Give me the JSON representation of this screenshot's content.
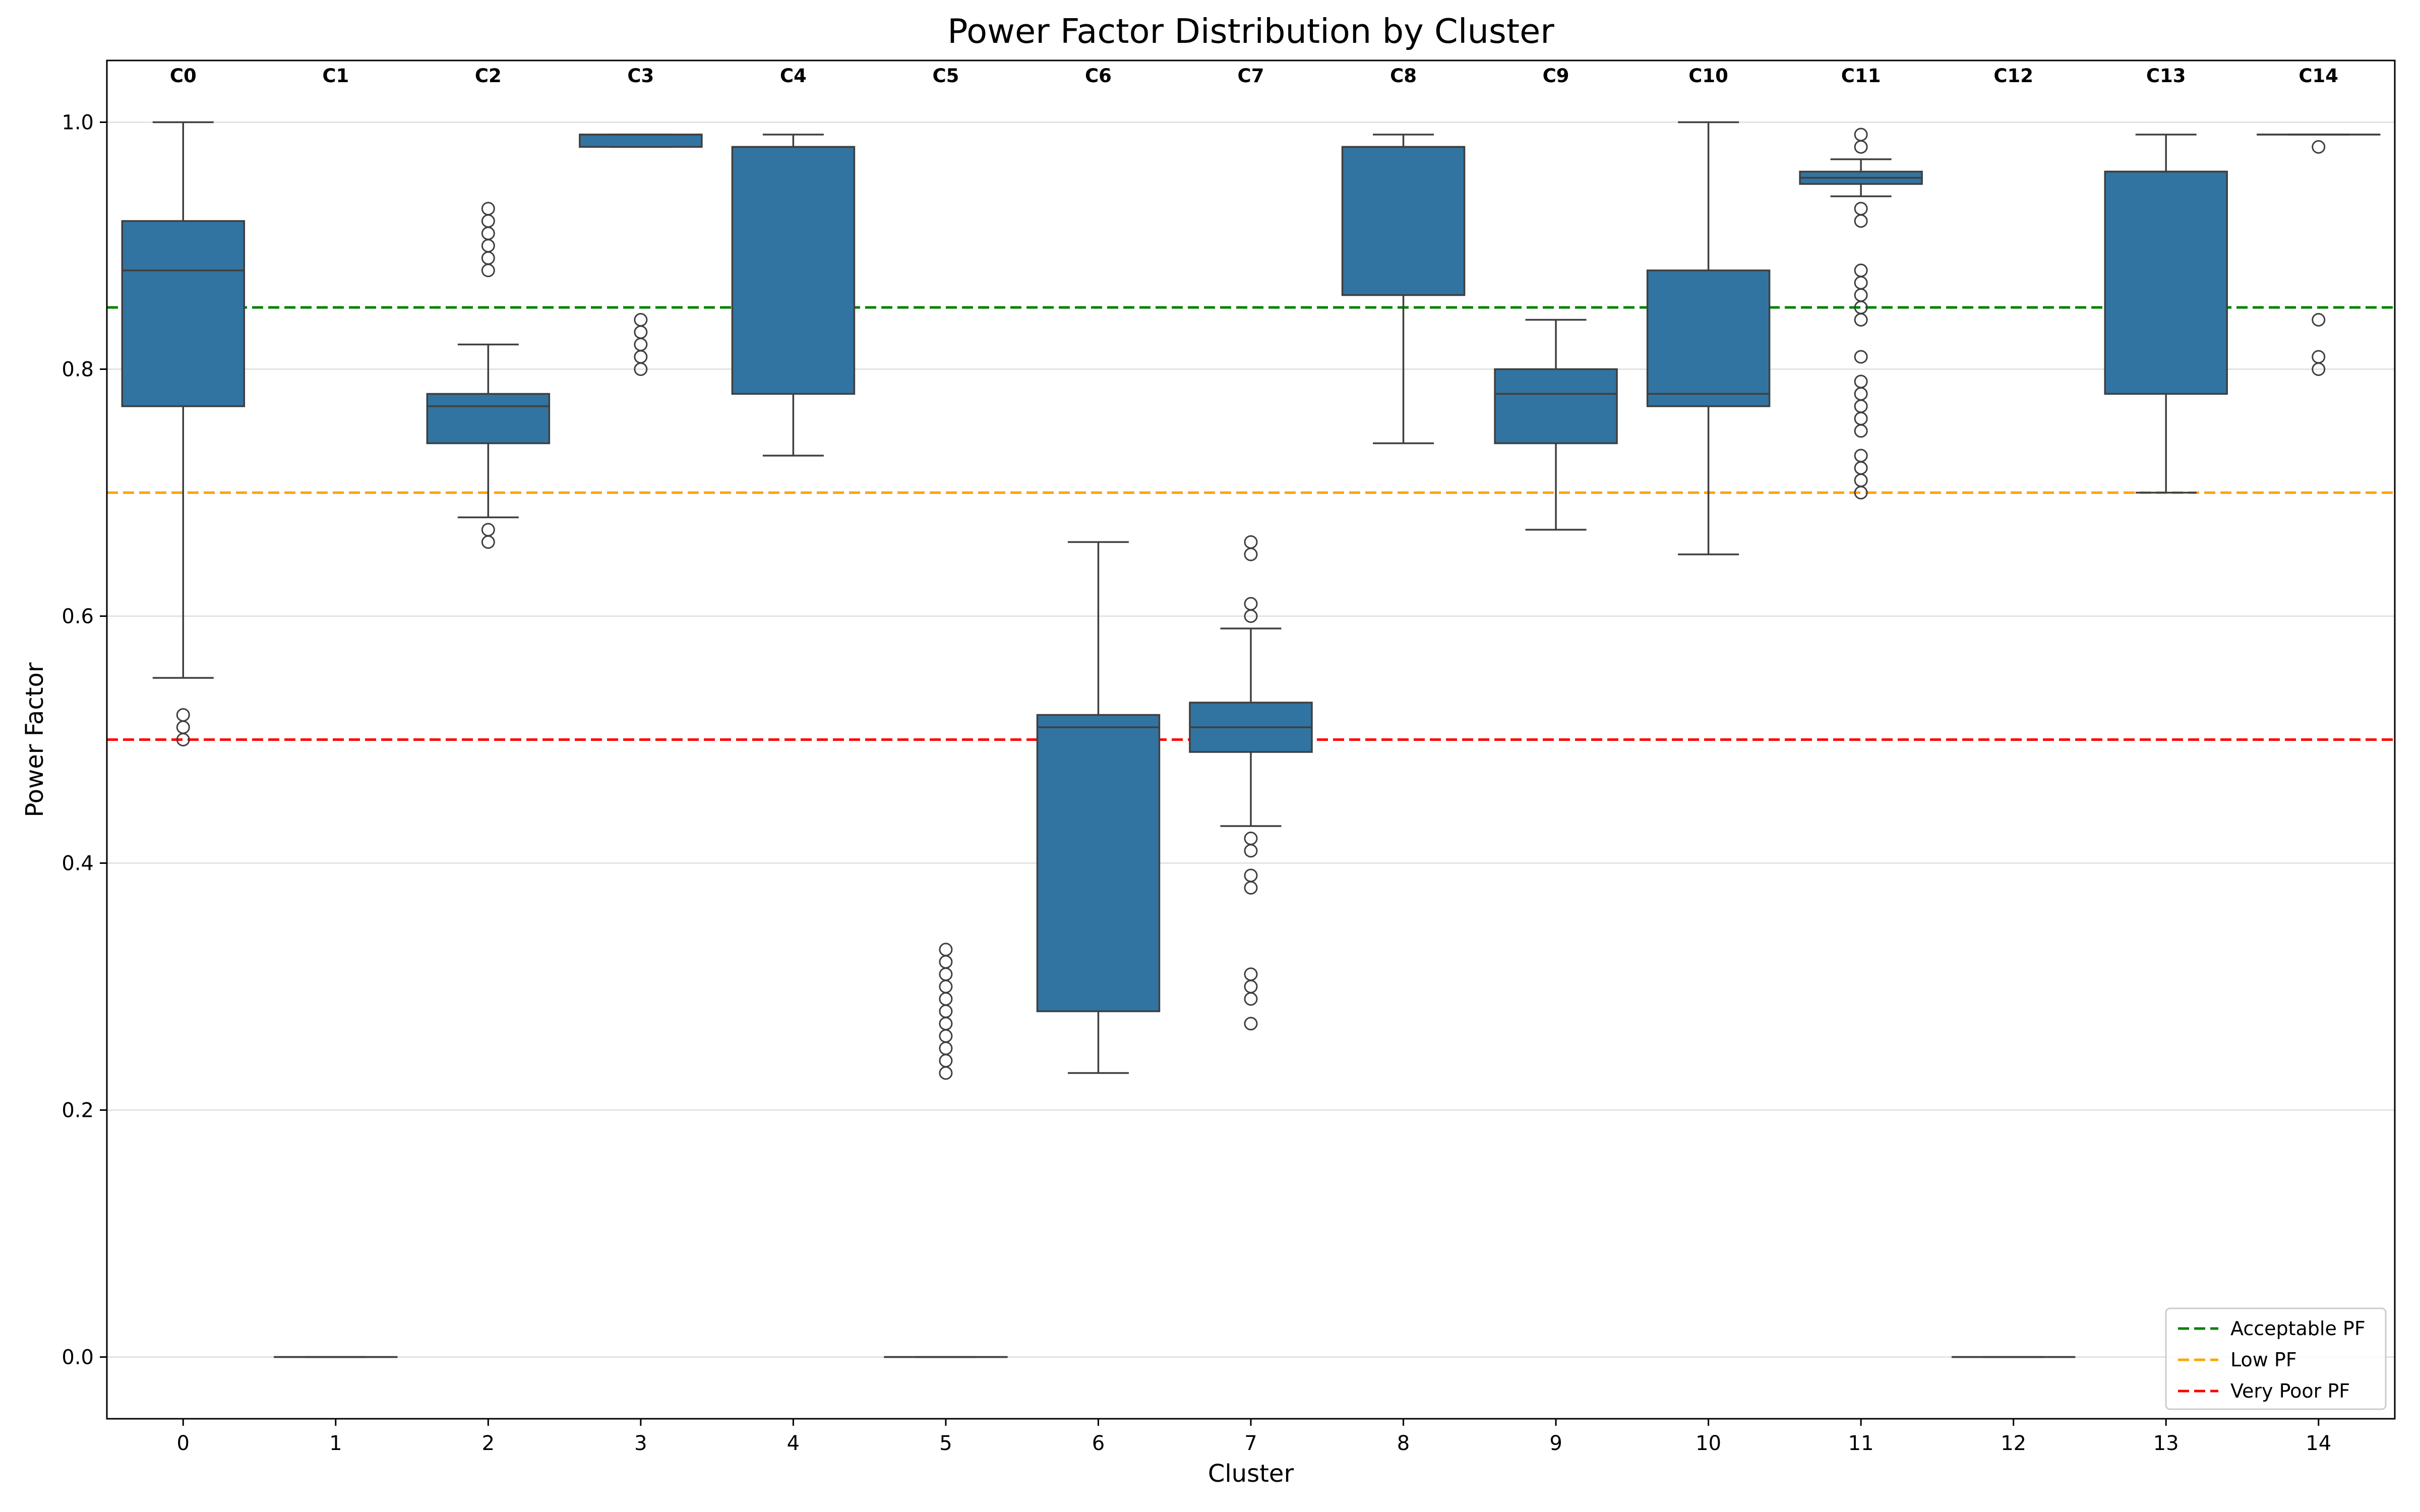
{
  "chart_data": {
    "type": "boxplot",
    "title": "Power Factor Distribution by Cluster",
    "xlabel": "Cluster",
    "ylabel": "Power Factor",
    "ylim": [
      -0.05,
      1.05
    ],
    "yticks": [
      0.0,
      0.2,
      0.4,
      0.6,
      0.8,
      1.0
    ],
    "ytick_labels": [
      "0.0",
      "0.2",
      "0.4",
      "0.6",
      "0.8",
      "1.0"
    ],
    "grid": "y",
    "box_color": "#3274a1",
    "clusters": [
      {
        "x": "0",
        "top_label": "C0",
        "q1": 0.77,
        "median": 0.88,
        "q3": 0.92,
        "whisker_low": 0.55,
        "whisker_high": 1.0,
        "outliers": [
          0.5,
          0.51,
          0.52
        ]
      },
      {
        "x": "1",
        "top_label": "C1",
        "q1": 0.0,
        "median": 0.0,
        "q3": 0.0,
        "whisker_low": 0.0,
        "whisker_high": 0.0,
        "outliers": []
      },
      {
        "x": "2",
        "top_label": "C2",
        "q1": 0.74,
        "median": 0.77,
        "q3": 0.78,
        "whisker_low": 0.68,
        "whisker_high": 0.82,
        "outliers": [
          0.66,
          0.67,
          0.88,
          0.89,
          0.9,
          0.91,
          0.92,
          0.93
        ]
      },
      {
        "x": "3",
        "top_label": "C3",
        "q1": 0.98,
        "median": 0.99,
        "q3": 0.99,
        "whisker_low": 0.98,
        "whisker_high": 0.99,
        "outliers": [
          0.8,
          0.81,
          0.82,
          0.83,
          0.84
        ]
      },
      {
        "x": "4",
        "top_label": "C4",
        "q1": 0.78,
        "median": 0.98,
        "q3": 0.98,
        "whisker_low": 0.73,
        "whisker_high": 0.99,
        "outliers": []
      },
      {
        "x": "5",
        "top_label": "C5",
        "q1": 0.0,
        "median": 0.0,
        "q3": 0.0,
        "whisker_low": 0.0,
        "whisker_high": 0.0,
        "outliers": [
          0.23,
          0.24,
          0.25,
          0.26,
          0.27,
          0.28,
          0.29,
          0.3,
          0.31,
          0.32,
          0.33
        ]
      },
      {
        "x": "6",
        "top_label": "C6",
        "q1": 0.28,
        "median": 0.51,
        "q3": 0.52,
        "whisker_low": 0.23,
        "whisker_high": 0.66,
        "outliers": []
      },
      {
        "x": "7",
        "top_label": "C7",
        "q1": 0.49,
        "median": 0.51,
        "q3": 0.53,
        "whisker_low": 0.43,
        "whisker_high": 0.59,
        "outliers": [
          0.27,
          0.29,
          0.3,
          0.31,
          0.38,
          0.39,
          0.41,
          0.42,
          0.6,
          0.61,
          0.65,
          0.66
        ]
      },
      {
        "x": "8",
        "top_label": "C8",
        "q1": 0.86,
        "median": 0.98,
        "q3": 0.98,
        "whisker_low": 0.74,
        "whisker_high": 0.99,
        "outliers": []
      },
      {
        "x": "9",
        "top_label": "C9",
        "q1": 0.74,
        "median": 0.78,
        "q3": 0.8,
        "whisker_low": 0.67,
        "whisker_high": 0.84,
        "outliers": []
      },
      {
        "x": "10",
        "top_label": "C10",
        "q1": 0.77,
        "median": 0.78,
        "q3": 0.88,
        "whisker_low": 0.65,
        "whisker_high": 1.0,
        "outliers": []
      },
      {
        "x": "11",
        "top_label": "C11",
        "q1": 0.95,
        "median": 0.955,
        "q3": 0.96,
        "whisker_low": 0.94,
        "whisker_high": 0.97,
        "outliers": [
          0.7,
          0.71,
          0.72,
          0.73,
          0.75,
          0.76,
          0.77,
          0.78,
          0.79,
          0.81,
          0.84,
          0.85,
          0.86,
          0.87,
          0.88,
          0.92,
          0.93,
          0.98,
          0.99
        ]
      },
      {
        "x": "12",
        "top_label": "C12",
        "q1": 0.0,
        "median": 0.0,
        "q3": 0.0,
        "whisker_low": 0.0,
        "whisker_high": 0.0,
        "outliers": []
      },
      {
        "x": "13",
        "top_label": "C13",
        "q1": 0.78,
        "median": 0.96,
        "q3": 0.96,
        "whisker_low": 0.7,
        "whisker_high": 0.99,
        "outliers": []
      },
      {
        "x": "14",
        "top_label": "C14",
        "q1": 0.99,
        "median": 0.99,
        "q3": 0.99,
        "whisker_low": 0.99,
        "whisker_high": 0.99,
        "outliers": [
          0.8,
          0.81,
          0.84,
          0.98
        ]
      }
    ],
    "reference_lines": [
      {
        "name": "Acceptable PF",
        "value": 0.85,
        "color": "#008000"
      },
      {
        "name": "Low PF",
        "value": 0.7,
        "color": "#ffa500"
      },
      {
        "name": "Very Poor PF",
        "value": 0.5,
        "color": "#ff0000"
      }
    ],
    "legend_position": "lower-right"
  }
}
